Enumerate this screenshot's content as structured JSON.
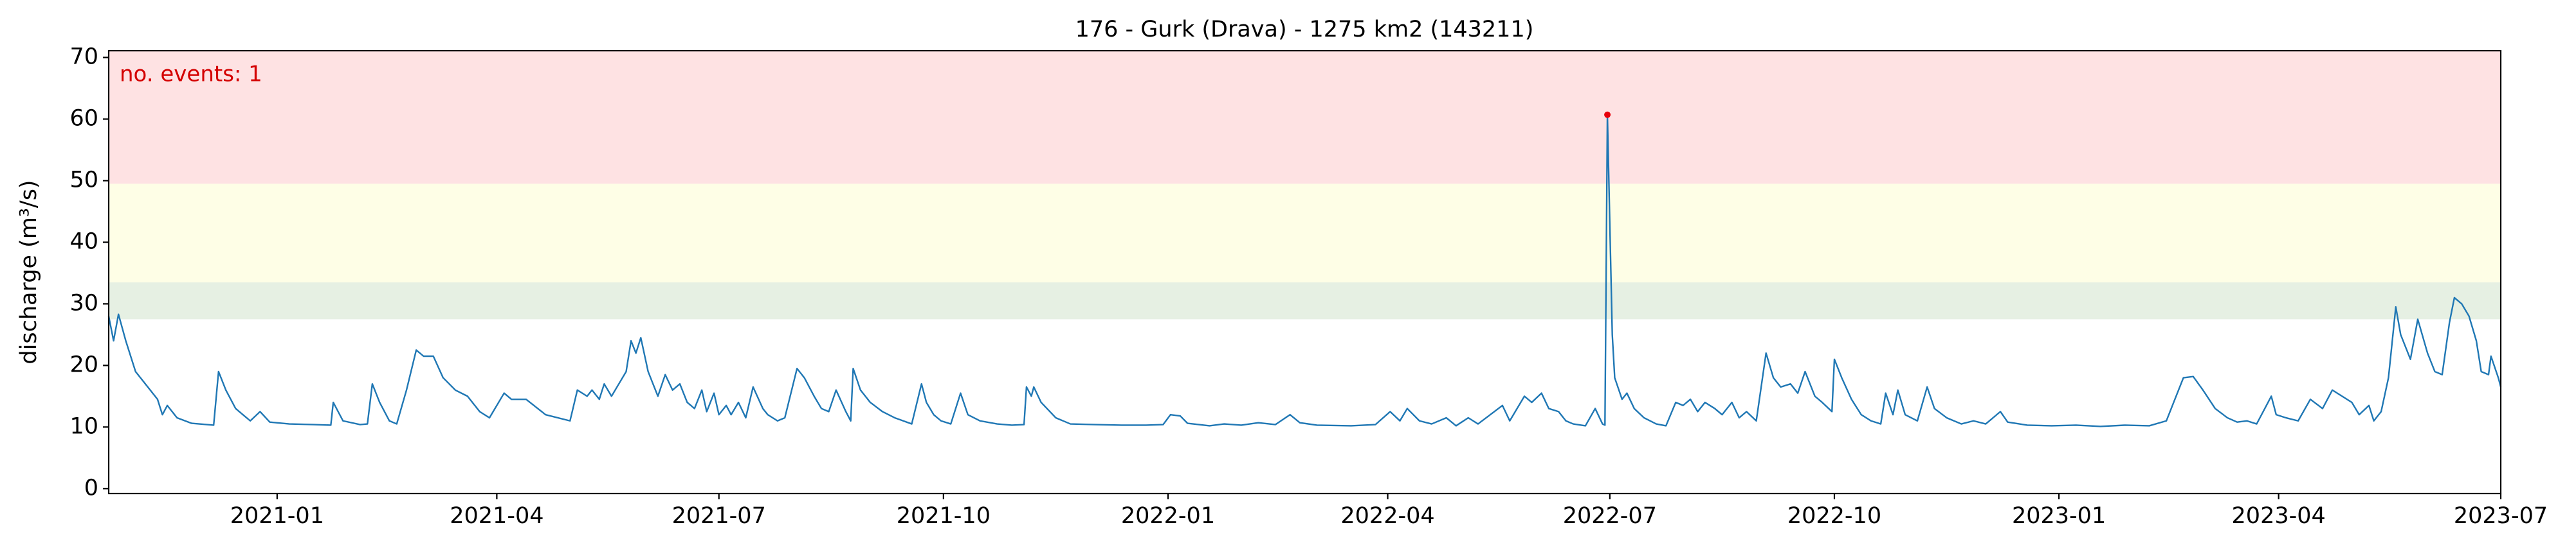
{
  "chart_data": {
    "type": "line",
    "title": "176 - Gurk (Drava) - 1275 km2 (143211)",
    "y_label": "discharge (m³/s)",
    "annotation": "no. events: 1",
    "color": "#1f77b4",
    "bands": [
      {
        "from": 27.5,
        "to": 33.5,
        "color": "#e6f0e3"
      },
      {
        "from": 33.5,
        "to": 49.5,
        "color": "#fefee6"
      },
      {
        "from": 49.5,
        "to": 71.1,
        "color": "#fee2e3"
      }
    ],
    "events": {
      "x": [
        "2022-06-30"
      ],
      "values": [
        60.7
      ],
      "color": "#e8000b"
    },
    "xlim": [
      "2020-10-24",
      "2023-07-01"
    ],
    "xticks": [
      "2021-01",
      "2021-04",
      "2021-07",
      "2021-10",
      "2022-01",
      "2022-04",
      "2022-07",
      "2022-10",
      "2023-01",
      "2023-04",
      "2023-07"
    ],
    "ylim": [
      -0.8,
      71.1
    ],
    "yticks": [
      0,
      10,
      20,
      30,
      40,
      50,
      60,
      70
    ],
    "x": [
      "2020-10-24",
      "2020-10-26",
      "2020-10-28",
      "2020-10-31",
      "2020-11-04",
      "2020-11-08",
      "2020-11-13",
      "2020-11-15",
      "2020-11-17",
      "2020-11-21",
      "2020-11-27",
      "2020-12-06",
      "2020-12-08",
      "2020-12-11",
      "2020-12-15",
      "2020-12-21",
      "2020-12-25",
      "2020-12-29",
      "2021-01-06",
      "2021-01-16",
      "2021-01-23",
      "2021-01-24",
      "2021-01-28",
      "2021-02-04",
      "2021-02-07",
      "2021-02-09",
      "2021-02-12",
      "2021-02-16",
      "2021-02-19",
      "2021-02-23",
      "2021-02-27",
      "2021-03-02",
      "2021-03-06",
      "2021-03-10",
      "2021-03-15",
      "2021-03-20",
      "2021-03-25",
      "2021-03-29",
      "2021-04-04",
      "2021-04-07",
      "2021-04-13",
      "2021-04-21",
      "2021-05-01",
      "2021-05-04",
      "2021-05-08",
      "2021-05-10",
      "2021-05-13",
      "2021-05-15",
      "2021-05-18",
      "2021-05-21",
      "2021-05-24",
      "2021-05-26",
      "2021-05-28",
      "2021-05-30",
      "2021-06-02",
      "2021-06-06",
      "2021-06-09",
      "2021-06-12",
      "2021-06-15",
      "2021-06-18",
      "2021-06-21",
      "2021-06-24",
      "2021-06-26",
      "2021-06-29",
      "2021-07-01",
      "2021-07-04",
      "2021-07-06",
      "2021-07-09",
      "2021-07-12",
      "2021-07-15",
      "2021-07-19",
      "2021-07-21",
      "2021-07-25",
      "2021-07-28",
      "2021-08-02",
      "2021-08-05",
      "2021-08-09",
      "2021-08-12",
      "2021-08-15",
      "2021-08-18",
      "2021-08-22",
      "2021-08-24",
      "2021-08-25",
      "2021-08-28",
      "2021-09-01",
      "2021-09-06",
      "2021-09-11",
      "2021-09-18",
      "2021-09-22",
      "2021-09-24",
      "2021-09-27",
      "2021-09-30",
      "2021-10-04",
      "2021-10-08",
      "2021-10-11",
      "2021-10-16",
      "2021-10-23",
      "2021-10-29",
      "2021-11-03",
      "2021-11-04",
      "2021-11-06",
      "2021-11-07",
      "2021-11-10",
      "2021-11-16",
      "2021-11-22",
      "2021-12-02",
      "2021-12-13",
      "2021-12-23",
      "2021-12-30",
      "2022-01-02",
      "2022-01-06",
      "2022-01-09",
      "2022-01-18",
      "2022-01-24",
      "2022-01-31",
      "2022-02-07",
      "2022-02-14",
      "2022-02-20",
      "2022-02-24",
      "2022-03-03",
      "2022-03-17",
      "2022-03-27",
      "2022-04-02",
      "2022-04-06",
      "2022-04-09",
      "2022-04-14",
      "2022-04-19",
      "2022-04-25",
      "2022-04-29",
      "2022-05-04",
      "2022-05-08",
      "2022-05-13",
      "2022-05-18",
      "2022-05-21",
      "2022-05-27",
      "2022-05-30",
      "2022-06-03",
      "2022-06-06",
      "2022-06-10",
      "2022-06-13",
      "2022-06-16",
      "2022-06-21",
      "2022-06-25",
      "2022-06-28",
      "2022-06-29",
      "2022-06-30",
      "2022-07-02",
      "2022-07-03",
      "2022-07-06",
      "2022-07-08",
      "2022-07-11",
      "2022-07-15",
      "2022-07-20",
      "2022-07-24",
      "2022-07-28",
      "2022-07-31",
      "2022-08-03",
      "2022-08-06",
      "2022-08-09",
      "2022-08-13",
      "2022-08-16",
      "2022-08-20",
      "2022-08-23",
      "2022-08-26",
      "2022-08-30",
      "2022-09-03",
      "2022-09-06",
      "2022-09-09",
      "2022-09-13",
      "2022-09-16",
      "2022-09-19",
      "2022-09-23",
      "2022-09-26",
      "2022-09-30",
      "2022-10-01",
      "2022-10-04",
      "2022-10-08",
      "2022-10-12",
      "2022-10-16",
      "2022-10-20",
      "2022-10-22",
      "2022-10-25",
      "2022-10-27",
      "2022-10-30",
      "2022-11-04",
      "2022-11-08",
      "2022-11-11",
      "2022-11-16",
      "2022-11-22",
      "2022-11-27",
      "2022-12-02",
      "2022-12-08",
      "2022-12-11",
      "2022-12-19",
      "2022-12-29",
      "2023-01-08",
      "2023-01-18",
      "2023-01-28",
      "2023-02-07",
      "2023-02-14",
      "2023-02-17",
      "2023-02-21",
      "2023-02-25",
      "2023-03-01",
      "2023-03-06",
      "2023-03-11",
      "2023-03-15",
      "2023-03-19",
      "2023-03-23",
      "2023-03-29",
      "2023-03-31",
      "2023-04-04",
      "2023-04-09",
      "2023-04-14",
      "2023-04-19",
      "2023-04-23",
      "2023-04-27",
      "2023-05-01",
      "2023-05-04",
      "2023-05-08",
      "2023-05-10",
      "2023-05-13",
      "2023-05-16",
      "2023-05-19",
      "2023-05-21",
      "2023-05-25",
      "2023-05-28",
      "2023-06-01",
      "2023-06-04",
      "2023-06-07",
      "2023-06-10",
      "2023-06-12",
      "2023-06-15",
      "2023-06-18",
      "2023-06-21",
      "2023-06-23",
      "2023-06-26",
      "2023-06-27",
      "2023-06-30",
      "2023-07-01"
    ],
    "values": [
      28,
      24,
      28.3,
      24,
      19,
      17,
      14.5,
      12,
      13.5,
      11.5,
      10.6,
      10.3,
      19,
      16,
      13,
      11,
      12.5,
      10.8,
      10.5,
      10.4,
      10.3,
      14,
      11,
      10.4,
      10.5,
      17,
      14,
      11,
      10.5,
      16,
      22.5,
      21.5,
      21.5,
      18,
      16,
      15,
      12.5,
      11.5,
      15.5,
      14.5,
      14.5,
      12,
      11,
      16,
      15,
      16,
      14.5,
      17,
      15,
      17,
      19,
      24,
      22,
      24.5,
      19,
      15,
      18.5,
      16,
      17,
      14,
      13,
      16,
      12.5,
      15.5,
      12,
      13.5,
      12,
      14,
      11.5,
      16.5,
      13,
      12,
      11,
      11.5,
      19.5,
      18,
      15,
      13,
      12.5,
      16,
      12.5,
      11,
      19.5,
      16,
      14,
      12.5,
      11.5,
      10.5,
      17,
      14,
      12,
      11,
      10.5,
      15.5,
      12,
      11,
      10.5,
      10.3,
      10.4,
      16.5,
      15,
      16.5,
      14,
      11.5,
      10.5,
      10.4,
      10.3,
      10.3,
      10.4,
      12,
      11.8,
      10.6,
      10.2,
      10.5,
      10.3,
      10.7,
      10.4,
      12,
      10.7,
      10.3,
      10.2,
      10.4,
      12.5,
      11,
      13,
      11,
      10.5,
      11.5,
      10.2,
      11.5,
      10.5,
      12,
      13.5,
      11,
      15,
      14,
      15.5,
      13,
      12.5,
      11,
      10.5,
      10.2,
      13,
      10.5,
      10.3,
      60.7,
      25,
      18,
      14.5,
      15.5,
      13,
      11.5,
      10.5,
      10.2,
      14,
      13.5,
      14.5,
      12.5,
      14,
      13,
      12,
      14,
      11.5,
      12.5,
      11,
      22,
      18,
      16.5,
      17,
      15.5,
      19,
      15,
      14,
      12.5,
      21,
      18,
      14.5,
      12,
      11,
      10.5,
      15.5,
      12,
      16,
      12,
      11,
      16.5,
      13,
      11.5,
      10.5,
      11,
      10.5,
      12.5,
      10.8,
      10.3,
      10.2,
      10.3,
      10.1,
      10.3,
      10.2,
      11,
      14,
      18,
      18.2,
      16,
      13,
      11.5,
      10.8,
      11,
      10.5,
      15,
      12,
      11.5,
      11,
      14.5,
      13,
      16,
      15,
      14,
      12,
      13.5,
      11,
      12.5,
      18,
      29.5,
      25,
      21,
      27.5,
      22,
      19,
      18.5,
      27,
      31,
      30,
      28,
      24,
      19,
      18.5,
      21.5,
      18,
      16.5
    ]
  }
}
